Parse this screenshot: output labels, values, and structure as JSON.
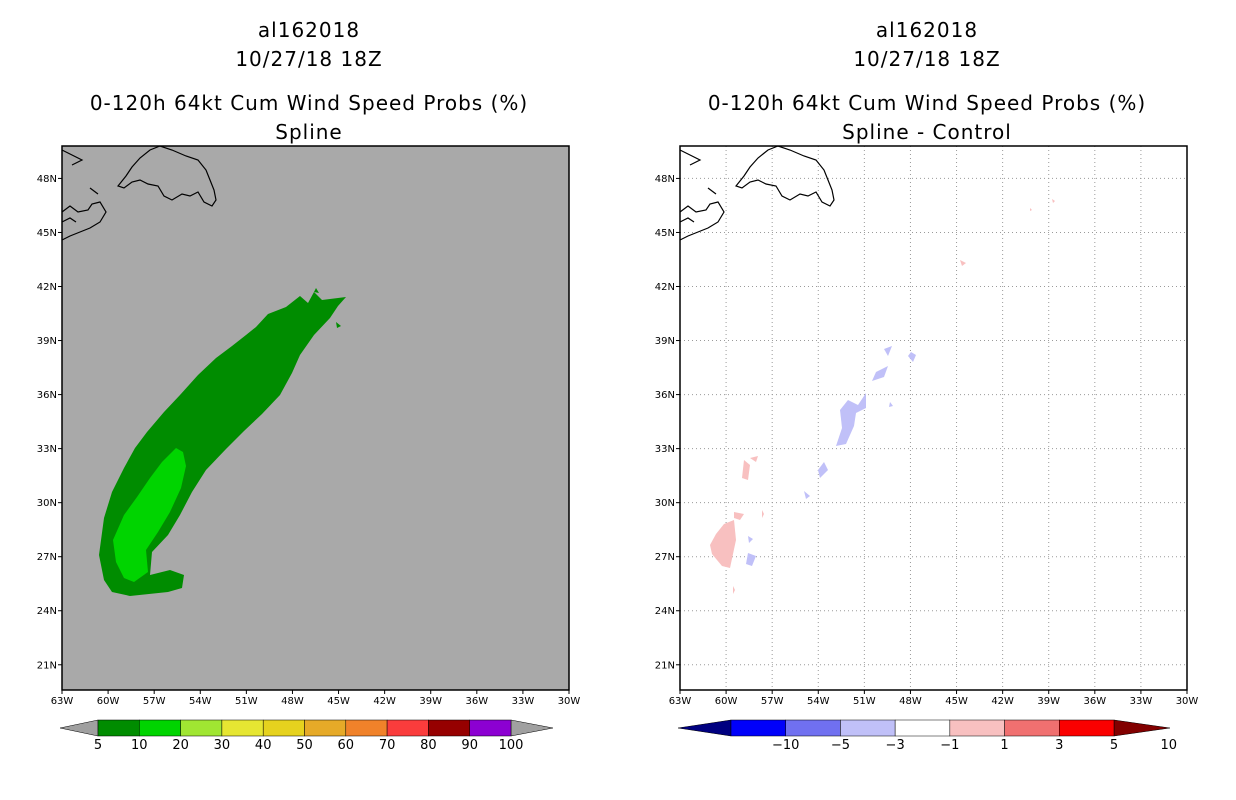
{
  "panels": [
    {
      "id": "left",
      "title_lines": [
        "al162018",
        "10/27/18 18Z",
        "0-120h 64kt Cum Wind Speed Probs (%)",
        "Spline"
      ],
      "background": "#a9a9a9",
      "gridlines": false,
      "x_ticks": [
        "63W",
        "60W",
        "57W",
        "54W",
        "51W",
        "48W",
        "45W",
        "42W",
        "39W",
        "36W",
        "33W",
        "30W"
      ],
      "y_ticks": [
        "21N",
        "24N",
        "27N",
        "30N",
        "33N",
        "36N",
        "39N",
        "42N",
        "45N",
        "48N"
      ],
      "colorbar": {
        "labels": [
          "5",
          "10",
          "20",
          "30",
          "40",
          "50",
          "60",
          "70",
          "80",
          "90",
          "100"
        ],
        "colors": [
          "#008c00",
          "#00d400",
          "#a0e632",
          "#e6e632",
          "#e6d21e",
          "#e6aa28",
          "#f0822a",
          "#fa3c3c",
          "#960000",
          "#8c00d2"
        ],
        "end_color": "#a0a0a0"
      }
    },
    {
      "id": "right",
      "title_lines": [
        "al162018",
        "10/27/18 18Z",
        "0-120h 64kt Cum Wind Speed Probs (%)",
        "Spline - Control"
      ],
      "background": "#ffffff",
      "gridlines": true,
      "x_ticks": [
        "63W",
        "60W",
        "57W",
        "54W",
        "51W",
        "48W",
        "45W",
        "42W",
        "39W",
        "36W",
        "33W",
        "30W"
      ],
      "y_ticks": [
        "21N",
        "24N",
        "27N",
        "30N",
        "33N",
        "36N",
        "39N",
        "42N",
        "45N",
        "48N"
      ],
      "colorbar": {
        "labels": [
          "-10",
          "-5",
          "-3",
          "-1",
          "1",
          "3",
          "5",
          "10"
        ],
        "colors": [
          "#0000c8",
          "#0000fa",
          "#7070f0",
          "#c0c0f8",
          "#ffffff",
          "#f8c0c0",
          "#f07070",
          "#fa0000",
          "#820000"
        ],
        "left_end_color": "#000080",
        "right_end_color": "#820000"
      }
    }
  ],
  "map_extent": {
    "lon_min": -63,
    "lon_max": -30,
    "lat_min": 19.6,
    "lat_max": 49.8
  },
  "fields": {
    "spline_5_10": "#008c00",
    "spline_10_20": "#00d400",
    "diff_neg": "#c0c0f8",
    "diff_pos": "#f8c0c0"
  }
}
